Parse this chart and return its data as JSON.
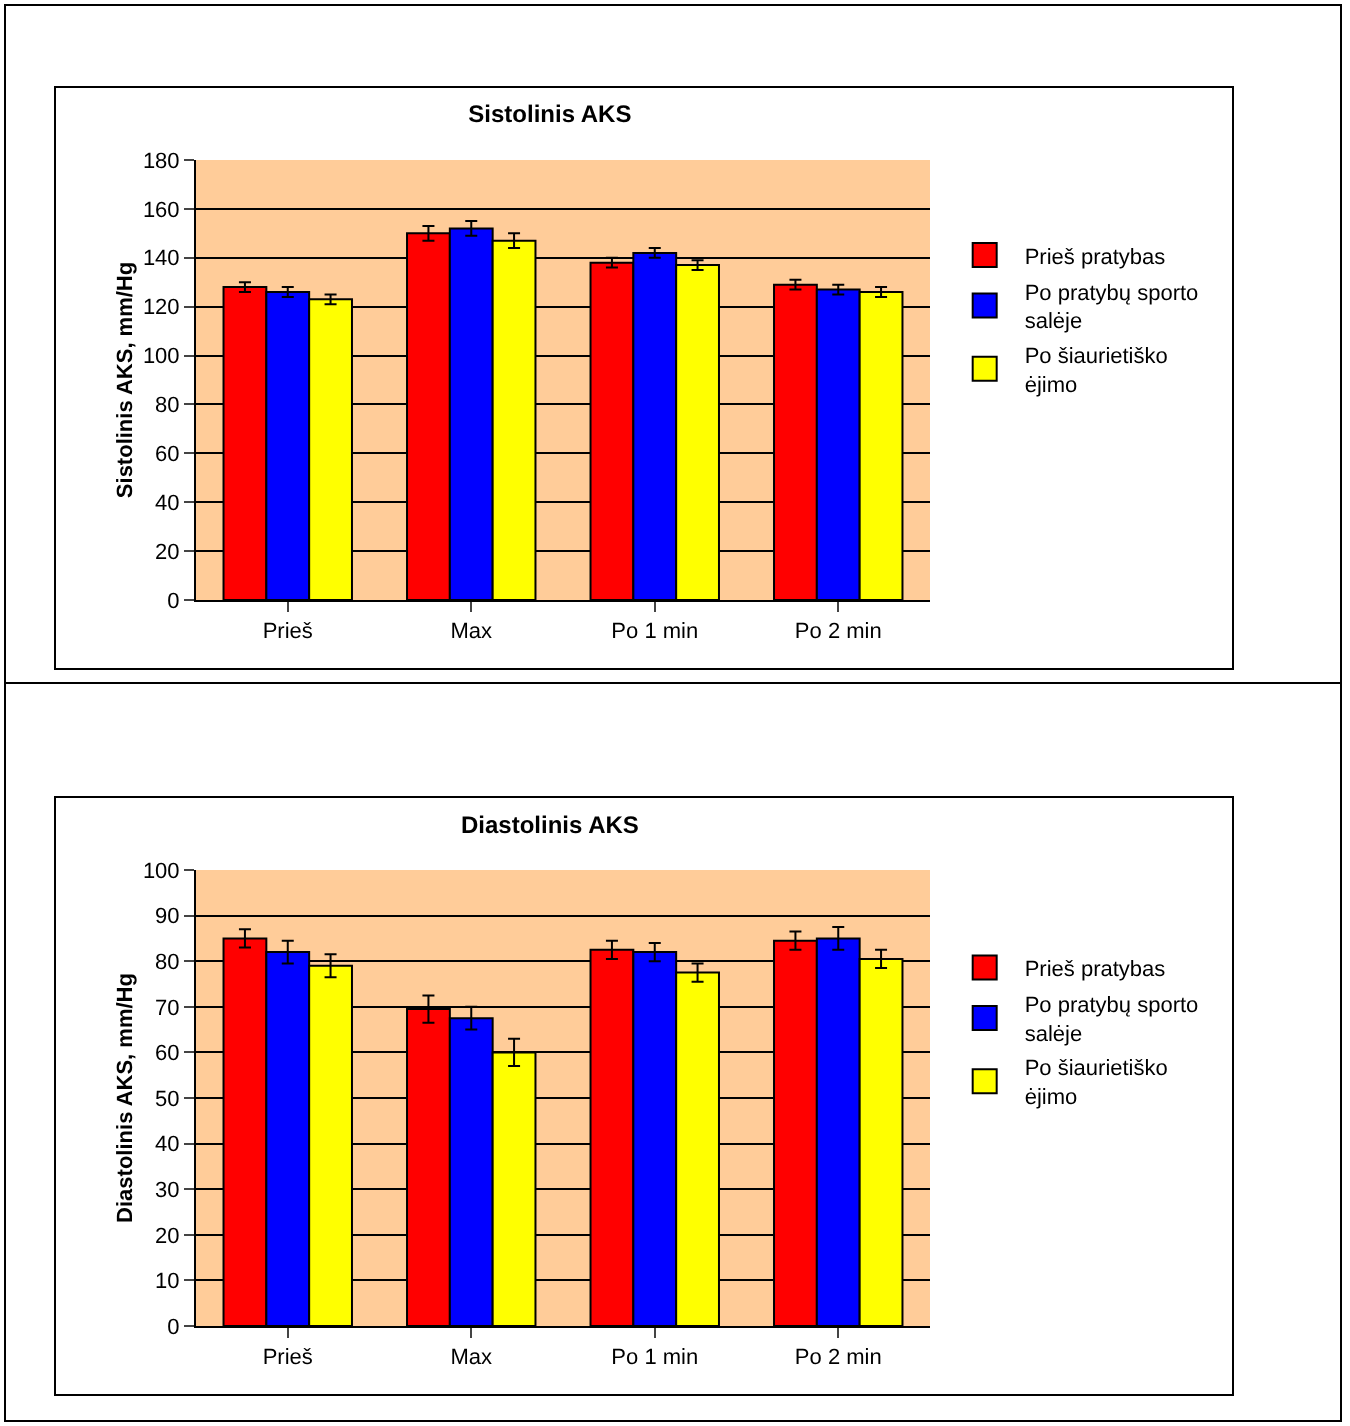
{
  "chart_data": [
    {
      "type": "bar",
      "title": "Sistolinis AKS",
      "ylabel": "Sistolinis AKS, mm/Hg",
      "categories": [
        "Prieš",
        "Max",
        "Po 1 min",
        "Po 2 min"
      ],
      "ylim": [
        0,
        180
      ],
      "yticks": [
        0,
        20,
        40,
        60,
        80,
        100,
        120,
        140,
        160,
        180
      ],
      "grid": "y",
      "legend": "right",
      "series": [
        {
          "name": "Prieš pratybas",
          "color": "#ff0000",
          "values": [
            128,
            150,
            138,
            129
          ],
          "errors": [
            2,
            3,
            2,
            2
          ]
        },
        {
          "name": "Po pratybų sporto salėje",
          "color": "#0000ff",
          "values": [
            126,
            152,
            142,
            127
          ],
          "errors": [
            2,
            3,
            2,
            2
          ]
        },
        {
          "name": "Po šiaurietiško ėjimo",
          "color": "#ffff00",
          "values": [
            123,
            147,
            137,
            126
          ],
          "errors": [
            2,
            3,
            2,
            2
          ]
        }
      ]
    },
    {
      "type": "bar",
      "title": "Diastolinis AKS",
      "ylabel": "Diastolinis AKS, mm/Hg",
      "categories": [
        "Prieš",
        "Max",
        "Po 1 min",
        "Po 2 min"
      ],
      "ylim": [
        0,
        100
      ],
      "yticks": [
        0,
        10,
        20,
        30,
        40,
        50,
        60,
        70,
        80,
        90,
        100
      ],
      "grid": "y",
      "legend": "right",
      "series": [
        {
          "name": "Prieš pratybas",
          "color": "#ff0000",
          "values": [
            85,
            69.5,
            82.5,
            84.5
          ],
          "errors": [
            2,
            3,
            2,
            2
          ]
        },
        {
          "name": "Po pratybų sporto salėje",
          "color": "#0000ff",
          "values": [
            82,
            67.5,
            82,
            85
          ],
          "errors": [
            2.5,
            2.5,
            2,
            2.5
          ]
        },
        {
          "name": "Po šiaurietiško ėjimo",
          "color": "#ffff00",
          "values": [
            79,
            60,
            77.5,
            80.5
          ],
          "errors": [
            2.5,
            3,
            2,
            2
          ]
        }
      ]
    }
  ]
}
